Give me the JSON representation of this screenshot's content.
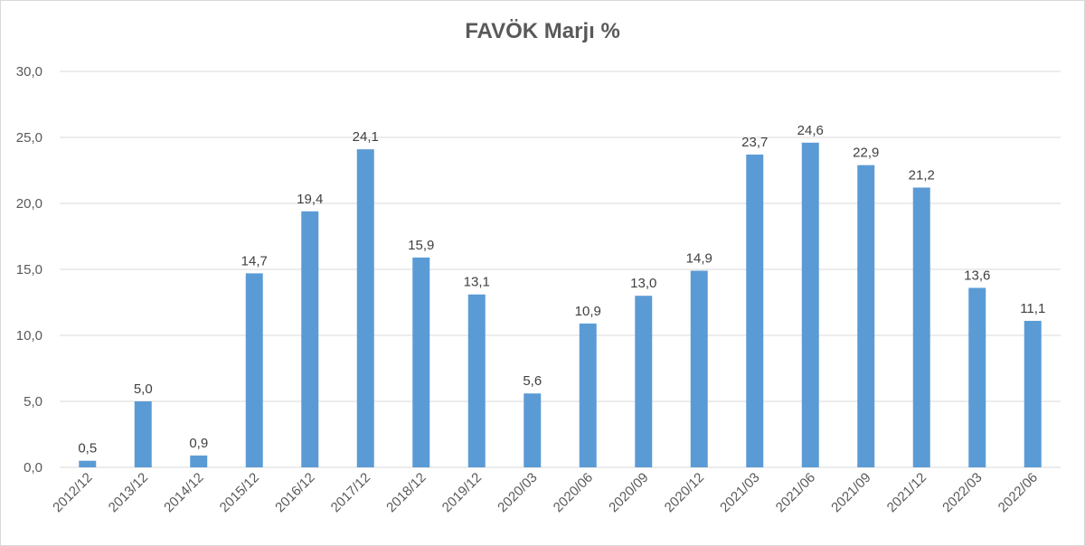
{
  "chart_data": {
    "type": "bar",
    "title": "FAVÖK Marjı %",
    "xlabel": "",
    "ylabel": "",
    "categories": [
      "2012/12",
      "2013/12",
      "2014/12",
      "2015/12",
      "2016/12",
      "2017/12",
      "2018/12",
      "2019/12",
      "2020/03",
      "2020/06",
      "2020/09",
      "2020/12",
      "2021/03",
      "2021/06",
      "2021/09",
      "2021/12",
      "2022/03",
      "2022/06"
    ],
    "values": [
      0.5,
      5.0,
      0.9,
      14.7,
      19.4,
      24.1,
      15.9,
      13.1,
      5.6,
      10.9,
      13.0,
      14.9,
      23.7,
      24.6,
      22.9,
      21.2,
      13.6,
      11.1
    ],
    "value_labels": [
      "0,5",
      "5,0",
      "0,9",
      "14,7",
      "19,4",
      "24,1",
      "15,9",
      "13,1",
      "5,6",
      "10,9",
      "13,0",
      "14,9",
      "23,7",
      "24,6",
      "22,9",
      "21,2",
      "13,6",
      "11,1"
    ],
    "yticks": [
      0,
      5,
      10,
      15,
      20,
      25,
      30
    ],
    "ytick_labels": [
      "0,0",
      "5,0",
      "10,0",
      "15,0",
      "20,0",
      "25,0",
      "30,0"
    ],
    "ylim": [
      0,
      30
    ],
    "grid": true,
    "legend": "none",
    "bar_color": "#5b9bd5",
    "grid_color": "#d9d9d9"
  }
}
